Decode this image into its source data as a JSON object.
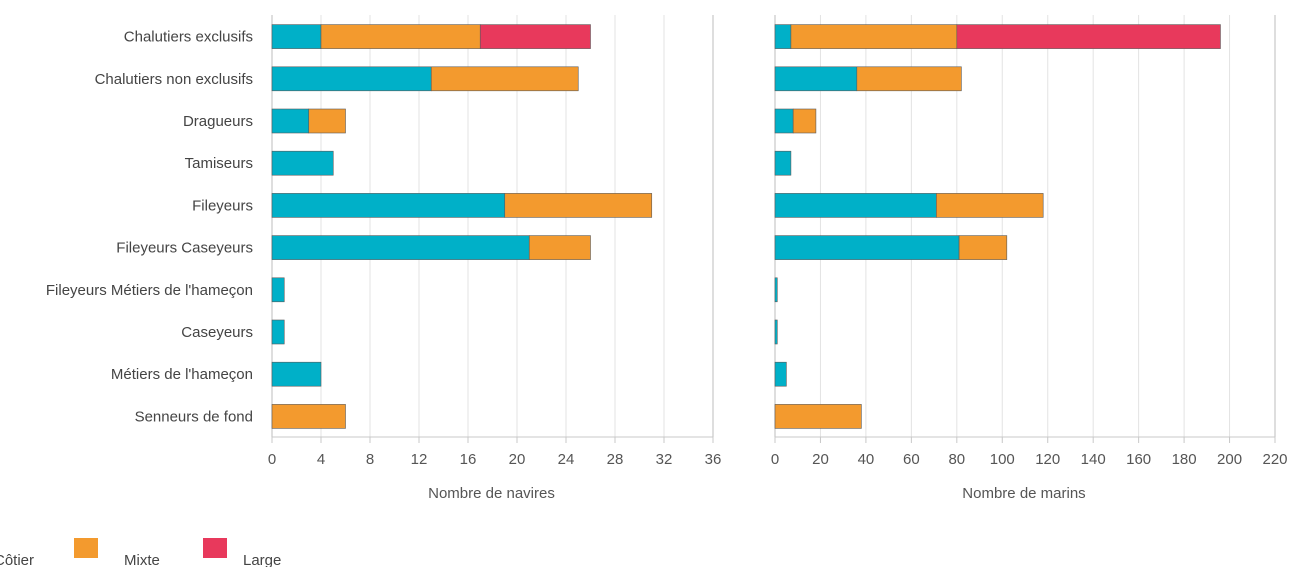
{
  "legend": [
    {
      "key": "cotier",
      "label": "Côtier",
      "color": "#00B0C8"
    },
    {
      "key": "mixte",
      "label": "Mixte",
      "color": "#F39A2E"
    },
    {
      "key": "large",
      "label": "Large",
      "color": "#E8395C"
    }
  ],
  "chart_data": [
    {
      "type": "bar",
      "orientation": "horizontal",
      "stacked": true,
      "categories": [
        "Chalutiers exclusifs",
        "Chalutiers non exclusifs",
        "Dragueurs",
        "Tamiseurs",
        "Fileyeurs",
        "Fileyeurs Caseyeurs",
        "Fileyeurs Métiers de l'hameçon",
        "Caseyeurs",
        "Métiers de l'hameçon",
        "Senneurs de fond"
      ],
      "series": [
        {
          "name": "Côtier",
          "values": [
            4,
            13,
            3,
            5,
            19,
            21,
            1,
            1,
            4,
            0
          ]
        },
        {
          "name": "Mixte",
          "values": [
            13,
            12,
            3,
            0,
            12,
            5,
            0,
            0,
            0,
            6
          ]
        },
        {
          "name": "Large",
          "values": [
            9,
            0,
            0,
            0,
            0,
            0,
            0,
            0,
            0,
            0
          ]
        }
      ],
      "xlabel": "Nombre de navires",
      "xlim": [
        0,
        36
      ],
      "xticks": [
        "0",
        "4",
        "8",
        "12",
        "16",
        "20",
        "24",
        "28",
        "32",
        "36"
      ],
      "grid": true
    },
    {
      "type": "bar",
      "orientation": "horizontal",
      "stacked": true,
      "categories": [
        "Chalutiers exclusifs",
        "Chalutiers non exclusifs",
        "Dragueurs",
        "Tamiseurs",
        "Fileyeurs",
        "Fileyeurs Caseyeurs",
        "Fileyeurs Métiers de l'hameçon",
        "Caseyeurs",
        "Métiers de l'hameçon",
        "Senneurs de fond"
      ],
      "series": [
        {
          "name": "Côtier",
          "values": [
            7,
            36,
            8,
            7,
            71,
            81,
            1,
            1,
            5,
            0
          ]
        },
        {
          "name": "Mixte",
          "values": [
            73,
            46,
            10,
            0,
            47,
            21,
            0,
            0,
            0,
            38
          ]
        },
        {
          "name": "Large",
          "values": [
            116,
            0,
            0,
            0,
            0,
            0,
            0,
            0,
            0,
            0
          ]
        }
      ],
      "xlabel": "Nombre de marins",
      "xlim": [
        0,
        220
      ],
      "xticks": [
        "0",
        "20",
        "40",
        "60",
        "80",
        "100",
        "120",
        "140",
        "160",
        "180",
        "200",
        "220"
      ],
      "grid": true
    }
  ]
}
